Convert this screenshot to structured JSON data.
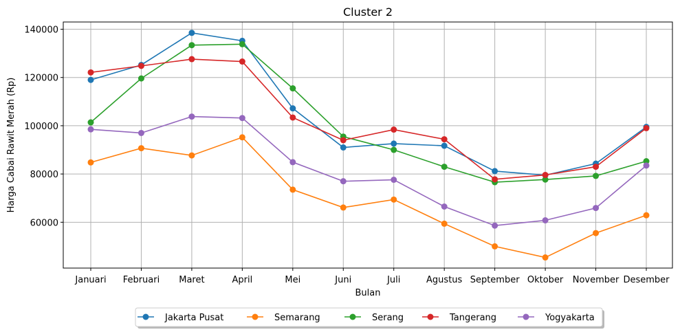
{
  "chart_data": {
    "type": "line",
    "title": "Cluster 2",
    "xlabel": "Bulan",
    "ylabel": "Harga Cabai Rawit Merah (Rp)",
    "categories": [
      "Januari",
      "Februari",
      "Maret",
      "April",
      "Mei",
      "Juni",
      "Juli",
      "Agustus",
      "September",
      "Oktober",
      "November",
      "Desember"
    ],
    "ylim": [
      41000,
      143000
    ],
    "yticks": [
      60000,
      80000,
      100000,
      120000,
      140000
    ],
    "grid": true,
    "legend_placement": "bottom-center",
    "series": [
      {
        "name": "Jakarta Pusat",
        "color": "#1f77b4",
        "values": [
          119000,
          125200,
          138500,
          135200,
          107200,
          91000,
          92600,
          91700,
          81200,
          79500,
          84300,
          99500
        ]
      },
      {
        "name": "Semarang",
        "color": "#ff7f0e",
        "values": [
          84800,
          90700,
          87700,
          95200,
          73500,
          66100,
          69400,
          59400,
          50000,
          45400,
          55500,
          62900
        ]
      },
      {
        "name": "Serang",
        "color": "#2ca02c",
        "values": [
          101400,
          119600,
          133400,
          133800,
          115500,
          95500,
          90000,
          83000,
          76600,
          77700,
          79200,
          85300
        ]
      },
      {
        "name": "Tangerang",
        "color": "#d62728",
        "values": [
          122100,
          124800,
          127600,
          126600,
          103400,
          94000,
          98400,
          94400,
          77800,
          79600,
          83000,
          99000
        ]
      },
      {
        "name": "Yogyakarta",
        "color": "#9467bd",
        "values": [
          98500,
          97000,
          103800,
          103200,
          84900,
          77000,
          77600,
          66500,
          58600,
          60800,
          65900,
          83500
        ]
      }
    ]
  }
}
